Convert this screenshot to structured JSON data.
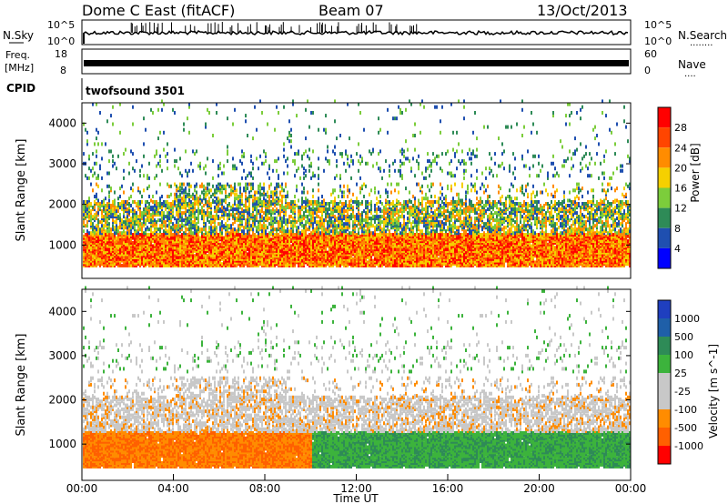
{
  "header": {
    "title": "Dome C East (fitACF)",
    "beam": "Beam 07",
    "date": "13/Oct/2013"
  },
  "sky_panel": {
    "left_label": "N.Sky",
    "right_label": "N.Search",
    "right_dots": "........",
    "left_tick_top": "10^5",
    "left_tick_bottom": "10^0",
    "right_tick_top": "10^5",
    "right_tick_bottom": "10^0"
  },
  "freq_panel": {
    "left_label_1": "Freq.",
    "left_label_2": "[MHz]",
    "left_tick_top": "18",
    "left_tick_bottom": "8",
    "right_label": "Nave",
    "right_dots": "....",
    "right_tick_top": "60",
    "right_tick_bottom": "0"
  },
  "cpid_panel": {
    "label": "CPID",
    "program": "twofsound 3501"
  },
  "colors": {
    "power": [
      "#0000ff",
      "#1f4fb0",
      "#2e8b57",
      "#7ccd3b",
      "#f5d000",
      "#ff8c00",
      "#ff4500",
      "#ff0000"
    ],
    "velocity": [
      "#1f3fbf",
      "#1f5fa8",
      "#2e8b57",
      "#3cb33c",
      "#c8c8c8",
      "#c8c8c8",
      "#ff8c00",
      "#ff6000",
      "#ff0000"
    ]
  },
  "chart_data": [
    {
      "type": "heatmap",
      "name": "power",
      "xlabel": "",
      "ylabel": "Slant Range [km]",
      "ylim": [
        180,
        4500
      ],
      "yticks": [
        "1000",
        "2000",
        "3000",
        "4000"
      ],
      "colorbar_label": "Power [dB]",
      "colorbar_ticks": [
        "4",
        "8",
        "12",
        "16",
        "20",
        "24",
        "28"
      ],
      "colorbar_range": [
        0,
        32
      ],
      "bands": [
        {
          "range_km": [
            500,
            1200
          ],
          "level": "strong"
        },
        {
          "range_km": [
            1200,
            2000
          ],
          "level": "moderate"
        },
        {
          "range_km": [
            2800,
            3200
          ],
          "level": "weak"
        }
      ]
    },
    {
      "type": "heatmap",
      "name": "velocity",
      "xlabel": "Time UT",
      "ylabel": "Slant Range [km]",
      "ylim": [
        180,
        4500
      ],
      "yticks": [
        "1000",
        "2000",
        "3000",
        "4000"
      ],
      "xticks": [
        "00:00",
        "04:00",
        "08:00",
        "12:00",
        "16:00",
        "20:00",
        "00:00"
      ],
      "colorbar_label": "Velocity [m s^-1]",
      "colorbar_ticks": [
        "1000",
        "500",
        "100",
        "25",
        "-25",
        "-100",
        "-500",
        "-1000"
      ],
      "bands": [
        {
          "range_km": [
            500,
            1200
          ],
          "time_h": [
            0,
            10
          ],
          "sign": "negative"
        },
        {
          "range_km": [
            500,
            1200
          ],
          "time_h": [
            10,
            24
          ],
          "sign": "positive"
        },
        {
          "range_km": [
            1200,
            2000
          ],
          "time_h": [
            0,
            24
          ],
          "sign": "near-zero"
        }
      ]
    }
  ]
}
